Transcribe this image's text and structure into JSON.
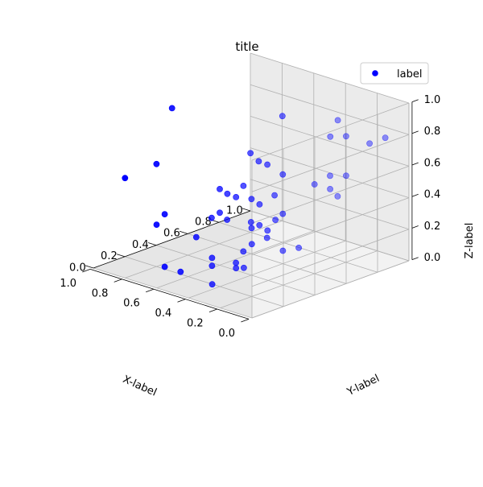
{
  "chart_data": {
    "type": "scatter",
    "title": "title",
    "xlabel": "X-label",
    "ylabel": "Y-label",
    "zlabel": "Z-label",
    "xlim": [
      0,
      1
    ],
    "ylim": [
      0,
      1
    ],
    "zlim": [
      0,
      1
    ],
    "x_ticks": [
      "0.0",
      "0.2",
      "0.4",
      "0.6",
      "0.8",
      "1.0"
    ],
    "y_ticks": [
      "0.0",
      "0.2",
      "0.4",
      "0.6",
      "0.8",
      "1.0"
    ],
    "z_ticks": [
      "0.0",
      "0.2",
      "0.4",
      "0.6",
      "0.8",
      "1.0"
    ],
    "grid": true,
    "legend_position": "upper-right",
    "series": [
      {
        "name": "label",
        "color": "#0000ff",
        "x": [
          0.95,
          0.4,
          0.9,
          0.3,
          0.1,
          0.6,
          0.8,
          0.2,
          0.7,
          0.5,
          0.35,
          0.15,
          0.45,
          0.05,
          0.85,
          0.25,
          0.55,
          0.75,
          0.65,
          0.2,
          0.35,
          0.5,
          0.1,
          0.7,
          0.85,
          0.3,
          0.5,
          0.6,
          0.2,
          0.25,
          0.15,
          0.4,
          0.3,
          0.4,
          0.45,
          0.2,
          0.1,
          0.05,
          0.05,
          0.15,
          0.1,
          0.25,
          0.2,
          0.05,
          0.3,
          0.4,
          0.55,
          0.5,
          0.6,
          0.15
        ],
        "y": [
          0.95,
          0.95,
          0.4,
          0.85,
          0.6,
          0.8,
          0.2,
          0.7,
          0.75,
          0.3,
          0.55,
          0.55,
          0.4,
          0.8,
          0.05,
          0.75,
          0.7,
          0.15,
          0.5,
          0.3,
          0.55,
          0.15,
          0.2,
          0.45,
          0.7,
          0.3,
          0.3,
          0.05,
          0.5,
          0.3,
          0.05,
          0.15,
          0.5,
          0.15,
          0.0,
          0.1,
          0.1,
          0.65,
          0.65,
          0.2,
          0.25,
          0.25,
          0.15,
          0.9,
          0.05,
          0.5,
          0.0,
          0.45,
          0.6,
          0.05
        ],
        "z": [
          0.4,
          0.3,
          0.9,
          0.85,
          0.9,
          0.8,
          0.65,
          0.5,
          0.5,
          0.55,
          0.6,
          0.6,
          0.55,
          0.8,
          0.6,
          0.55,
          0.35,
          0.3,
          0.4,
          0.8,
          0.35,
          0.3,
          0.45,
          0.25,
          0.1,
          0.55,
          0.4,
          0.45,
          0.2,
          0.4,
          0.7,
          0.2,
          0.15,
          0.15,
          0.15,
          0.25,
          0.4,
          0.65,
          0.9,
          0.6,
          0.5,
          0.4,
          0.2,
          0.8,
          0.1,
          0.2,
          0.15,
          0.1,
          0.2,
          0.25
        ]
      }
    ]
  }
}
